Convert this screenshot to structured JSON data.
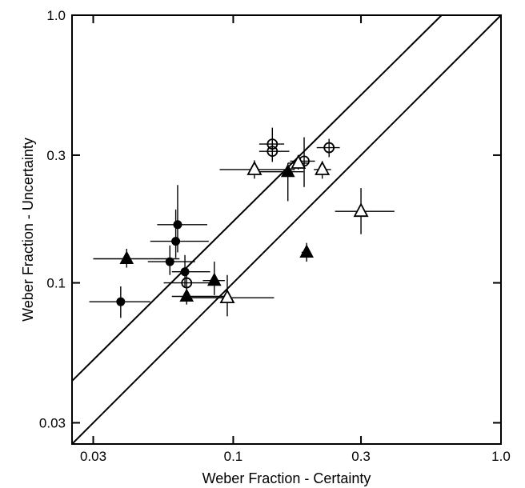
{
  "chart_data": {
    "type": "scatter",
    "xlabel": "Weber Fraction - Certainty",
    "ylabel": "Weber Fraction - Uncertainty",
    "x_scale": "log",
    "y_scale": "log",
    "xlim": [
      0.025,
      1.0
    ],
    "ylim": [
      0.025,
      1.0
    ],
    "x_ticks": [
      {
        "value": 0.03,
        "label": "0.03"
      },
      {
        "value": 0.1,
        "label": "0.1"
      },
      {
        "value": 0.3,
        "label": "0.3"
      },
      {
        "value": 1.0,
        "label": "1.0"
      }
    ],
    "y_ticks": [
      {
        "value": 0.03,
        "label": "0.03"
      },
      {
        "value": 0.1,
        "label": "0.1"
      },
      {
        "value": 0.3,
        "label": "0.3"
      },
      {
        "value": 1.0,
        "label": "1.0"
      }
    ],
    "grid": false,
    "reference_lines": [
      {
        "kind": "identity",
        "x": [
          0.025,
          1.0
        ],
        "y": [
          0.025,
          1.0
        ]
      },
      {
        "kind": "offset",
        "x": [
          0.025,
          0.6
        ],
        "y": [
          0.043,
          1.0
        ]
      }
    ],
    "series": [
      {
        "marker": "filled-circle",
        "points": [
          {
            "x": 0.038,
            "y": 0.085,
            "xerr": [
              0.029,
              0.049
            ],
            "yerr": [
              0.074,
              0.097
            ]
          },
          {
            "x": 0.058,
            "y": 0.12,
            "xerr": [
              0.048,
              0.072
            ],
            "yerr": [
              0.107,
              0.138
            ]
          },
          {
            "x": 0.061,
            "y": 0.143,
            "xerr": [
              0.049,
              0.081
            ],
            "yerr": [
              0.124,
              0.188
            ]
          },
          {
            "x": 0.062,
            "y": 0.165,
            "xerr": [
              0.052,
              0.08
            ],
            "yerr": [
              0.13,
              0.232
            ]
          },
          {
            "x": 0.066,
            "y": 0.11,
            "xerr": [
              0.059,
              0.082
            ],
            "yerr": [
              0.097,
              0.127
            ]
          }
        ]
      },
      {
        "marker": "open-circle",
        "points": [
          {
            "x": 0.067,
            "y": 0.1,
            "xerr": [
              0.055,
              0.084
            ],
            "yerr": [
              0.09,
              0.112
            ]
          },
          {
            "x": 0.14,
            "y": 0.33,
            "xerr": [
              0.125,
              0.155
            ],
            "yerr": [
              0.288,
              0.38
            ]
          },
          {
            "x": 0.14,
            "y": 0.31,
            "xerr": [
              0.125,
              0.162
            ],
            "yerr": [
              0.283,
              0.34
            ]
          },
          {
            "x": 0.184,
            "y": 0.285,
            "xerr": [
              0.163,
              0.202
            ],
            "yerr": [
              0.228,
              0.35
            ]
          },
          {
            "x": 0.228,
            "y": 0.32,
            "xerr": [
              0.205,
              0.25
            ],
            "yerr": [
              0.295,
              0.345
            ]
          }
        ]
      },
      {
        "marker": "filled-triangle",
        "points": [
          {
            "x": 0.04,
            "y": 0.123,
            "xerr": [
              0.03,
              0.063
            ],
            "yerr": [
              0.114,
              0.134
            ]
          },
          {
            "x": 0.067,
            "y": 0.089,
            "xerr": [
              0.059,
              0.093
            ],
            "yerr": [
              0.083,
              0.096
            ]
          },
          {
            "x": 0.085,
            "y": 0.102,
            "xerr": [
              0.077,
              0.093
            ],
            "yerr": [
              0.09,
              0.12
            ]
          },
          {
            "x": 0.16,
            "y": 0.26,
            "xerr": [
              0.12,
              0.183
            ],
            "yerr": [
              0.202,
              0.28
            ]
          },
          {
            "x": 0.188,
            "y": 0.13,
            "xerr": [
              0.18,
              0.195
            ],
            "yerr": [
              0.12,
              0.141
            ]
          }
        ]
      },
      {
        "marker": "open-triangle",
        "points": [
          {
            "x": 0.095,
            "y": 0.088,
            "xerr": [
              0.069,
              0.142
            ],
            "yerr": [
              0.075,
              0.107
            ]
          },
          {
            "x": 0.12,
            "y": 0.265,
            "xerr": [
              0.089,
              0.17
            ],
            "yerr": [
              0.245,
              0.287
            ]
          },
          {
            "x": 0.175,
            "y": 0.28,
            "xerr": [
              0.16,
              0.19
            ],
            "yerr": [
              0.265,
              0.293
            ]
          },
          {
            "x": 0.215,
            "y": 0.265,
            "xerr": [
              0.2,
              0.232
            ],
            "yerr": [
              0.245,
              0.285
            ]
          },
          {
            "x": 0.3,
            "y": 0.185,
            "xerr": [
              0.24,
              0.4
            ],
            "yerr": [
              0.152,
              0.226
            ]
          }
        ]
      }
    ]
  }
}
